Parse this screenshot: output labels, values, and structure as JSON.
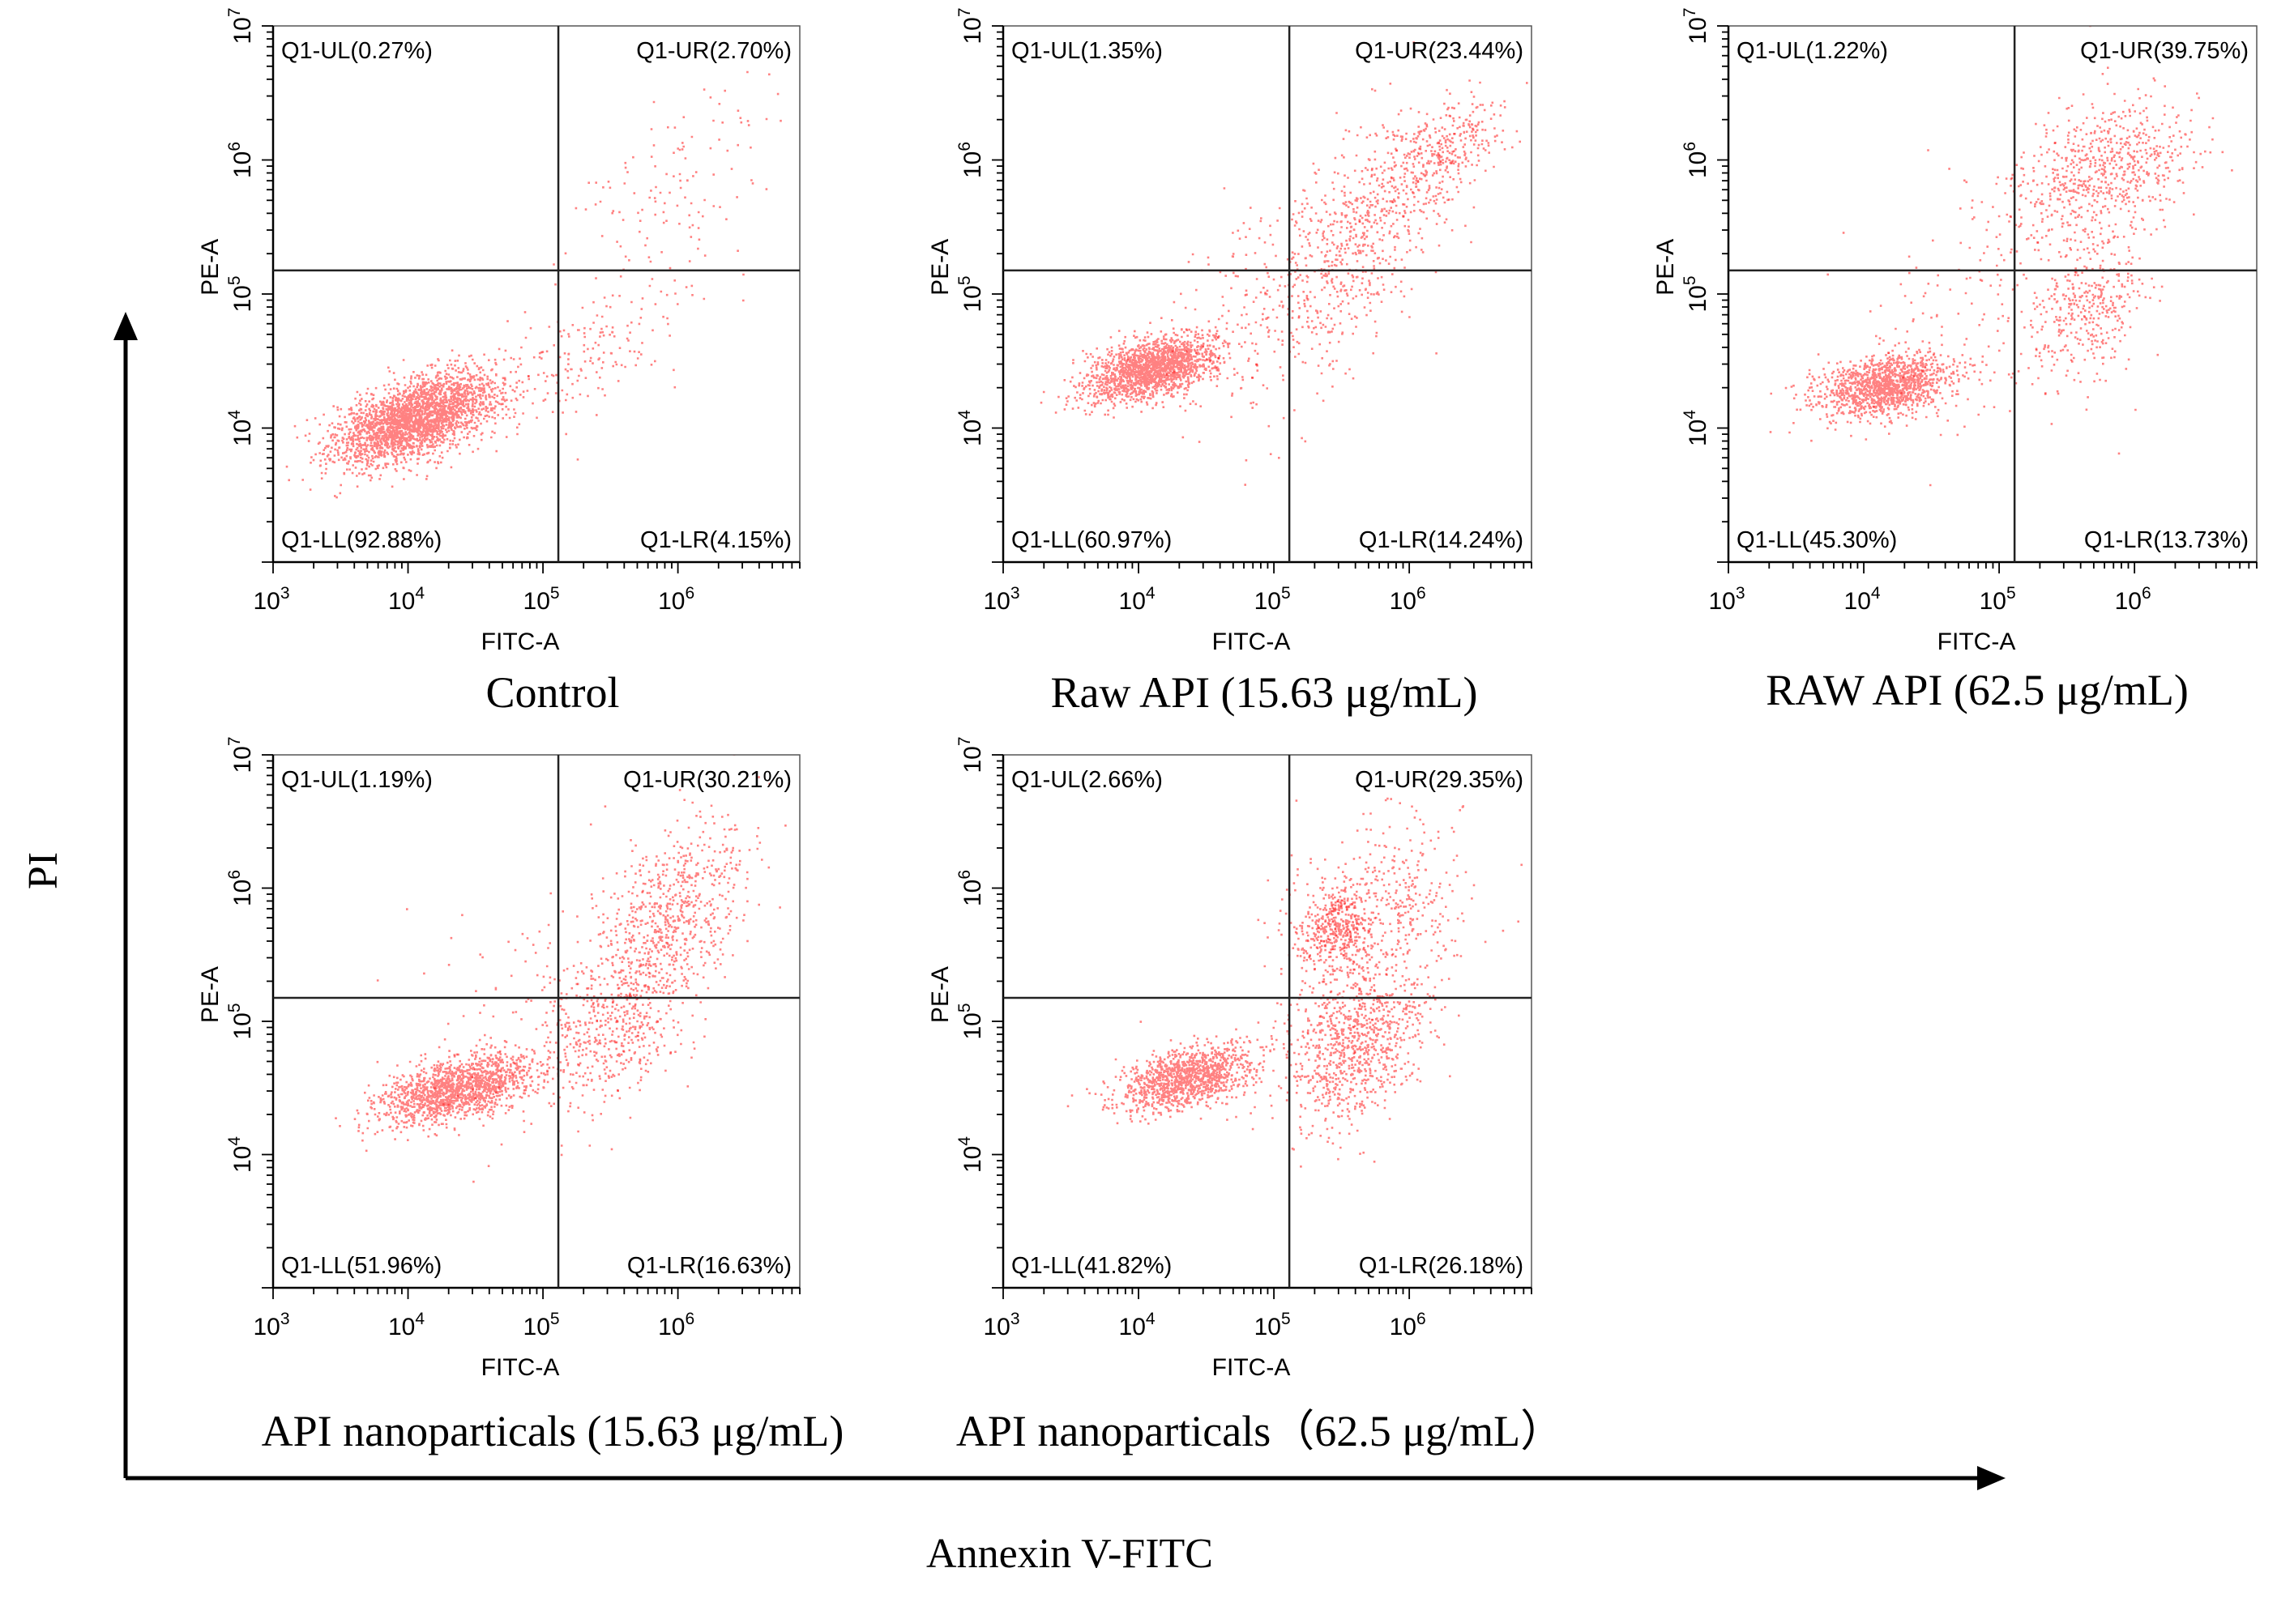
{
  "figure": {
    "global_y_label": "PI",
    "global_x_label": "Annexin V-FITC"
  },
  "colors": {
    "dots": "#ff1a1a",
    "axis": "#000000",
    "background": "#ffffff"
  },
  "chart_data": [
    {
      "type": "scatter",
      "title": "Control",
      "xlabel": "FITC-A",
      "ylabel": "PE-A",
      "x_scale": "log",
      "y_scale": "log",
      "xlim": [
        1000,
        8000000
      ],
      "ylim": [
        1000,
        10000000
      ],
      "x_ticks": [
        {
          "base": "10",
          "exp": "3"
        },
        {
          "base": "10",
          "exp": "4"
        },
        {
          "base": "10",
          "exp": "5"
        },
        {
          "base": "10",
          "exp": "6"
        }
      ],
      "y_ticks": [
        {
          "base": "10",
          "exp": "4"
        },
        {
          "base": "10",
          "exp": "5"
        },
        {
          "base": "10",
          "exp": "6"
        },
        {
          "base": "10",
          "exp": "7"
        }
      ],
      "gate": {
        "x": 130000,
        "y": 150000
      },
      "quadrants": {
        "UL": "Q1-UL(0.27%)",
        "UR": "Q1-UR(2.70%)",
        "LL": "Q1-LL(92.88%)",
        "LR": "Q1-LR(4.15%)"
      },
      "quadrant_percent": {
        "UL": 0.27,
        "UR": 2.7,
        "LL": 92.88,
        "LR": 4.15
      },
      "clusters": [
        {
          "count": 2600,
          "x_log": 4.05,
          "y_log": 4.08,
          "sx": 0.3,
          "sy": 0.17,
          "rho": 0.55
        },
        {
          "count": 200,
          "x_log": 5.4,
          "y_log": 4.6,
          "sx": 0.4,
          "sy": 0.35,
          "rho": 0.7
        },
        {
          "count": 110,
          "x_log": 5.95,
          "y_log": 5.9,
          "sx": 0.35,
          "sy": 0.3,
          "rho": 0.5
        }
      ]
    },
    {
      "type": "scatter",
      "title": "Raw API (15.63 μg/mL)",
      "xlabel": "FITC-A",
      "ylabel": "PE-A",
      "x_scale": "log",
      "y_scale": "log",
      "xlim": [
        1000,
        8000000
      ],
      "ylim": [
        1000,
        10000000
      ],
      "x_ticks": [
        {
          "base": "10",
          "exp": "3"
        },
        {
          "base": "10",
          "exp": "4"
        },
        {
          "base": "10",
          "exp": "5"
        },
        {
          "base": "10",
          "exp": "6"
        }
      ],
      "y_ticks": [
        {
          "base": "10",
          "exp": "4"
        },
        {
          "base": "10",
          "exp": "5"
        },
        {
          "base": "10",
          "exp": "6"
        },
        {
          "base": "10",
          "exp": "7"
        }
      ],
      "gate": {
        "x": 130000,
        "y": 150000
      },
      "quadrants": {
        "UL": "Q1-UL(1.35%)",
        "UR": "Q1-UR(23.44%)",
        "LL": "Q1-LL(60.97%)",
        "LR": "Q1-LR(14.24%)"
      },
      "quadrant_percent": {
        "UL": 1.35,
        "UR": 23.44,
        "LL": 60.97,
        "LR": 14.24
      },
      "clusters": [
        {
          "count": 1700,
          "x_log": 4.1,
          "y_log": 4.45,
          "sx": 0.24,
          "sy": 0.12,
          "rho": 0.45
        },
        {
          "count": 650,
          "x_log": 5.55,
          "y_log": 5.4,
          "sx": 0.35,
          "sy": 0.45,
          "rho": 0.6
        },
        {
          "count": 350,
          "x_log": 6.2,
          "y_log": 6.05,
          "sx": 0.25,
          "sy": 0.22,
          "rho": 0.5
        },
        {
          "count": 160,
          "x_log": 4.9,
          "y_log": 4.8,
          "sx": 0.4,
          "sy": 0.5,
          "rho": 0.3
        }
      ]
    },
    {
      "type": "scatter",
      "title": "RAW API (62.5 μg/mL)",
      "xlabel": "FITC-A",
      "ylabel": "PE-A",
      "x_scale": "log",
      "y_scale": "log",
      "xlim": [
        1000,
        8000000
      ],
      "ylim": [
        1000,
        10000000
      ],
      "x_ticks": [
        {
          "base": "10",
          "exp": "3"
        },
        {
          "base": "10",
          "exp": "4"
        },
        {
          "base": "10",
          "exp": "5"
        },
        {
          "base": "10",
          "exp": "6"
        }
      ],
      "y_ticks": [
        {
          "base": "10",
          "exp": "4"
        },
        {
          "base": "10",
          "exp": "5"
        },
        {
          "base": "10",
          "exp": "6"
        },
        {
          "base": "10",
          "exp": "7"
        }
      ],
      "gate": {
        "x": 130000,
        "y": 150000
      },
      "quadrants": {
        "UL": "Q1-UL(1.22%)",
        "UR": "Q1-UR(39.75%)",
        "LL": "Q1-LL(45.30%)",
        "LR": "Q1-LR(13.73%)"
      },
      "quadrant_percent": {
        "UL": 1.22,
        "UR": 39.75,
        "LL": 45.3,
        "LR": 13.73
      },
      "clusters": [
        {
          "count": 1300,
          "x_log": 4.15,
          "y_log": 4.32,
          "sx": 0.25,
          "sy": 0.12,
          "rho": 0.3
        },
        {
          "count": 700,
          "x_log": 5.75,
          "y_log": 5.9,
          "sx": 0.35,
          "sy": 0.28,
          "rho": 0.4
        },
        {
          "count": 350,
          "x_log": 5.65,
          "y_log": 4.9,
          "sx": 0.2,
          "sy": 0.25,
          "rho": 0.3
        },
        {
          "count": 150,
          "x_log": 4.9,
          "y_log": 4.9,
          "sx": 0.45,
          "sy": 0.5,
          "rho": 0.2
        }
      ]
    },
    {
      "type": "scatter",
      "title": "API nanoparticals (15.63 μg/mL)",
      "xlabel": "FITC-A",
      "ylabel": "PE-A",
      "x_scale": "log",
      "y_scale": "log",
      "xlim": [
        1000,
        8000000
      ],
      "ylim": [
        1000,
        10000000
      ],
      "x_ticks": [
        {
          "base": "10",
          "exp": "3"
        },
        {
          "base": "10",
          "exp": "4"
        },
        {
          "base": "10",
          "exp": "5"
        },
        {
          "base": "10",
          "exp": "6"
        }
      ],
      "y_ticks": [
        {
          "base": "10",
          "exp": "4"
        },
        {
          "base": "10",
          "exp": "5"
        },
        {
          "base": "10",
          "exp": "6"
        },
        {
          "base": "10",
          "exp": "7"
        }
      ],
      "gate": {
        "x": 130000,
        "y": 150000
      },
      "quadrants": {
        "UL": "Q1-UL(1.19%)",
        "UR": "Q1-UR(30.21%)",
        "LL": "Q1-LL(51.96%)",
        "LR": "Q1-LR(16.63%)"
      },
      "quadrant_percent": {
        "UL": 1.19,
        "UR": 30.21,
        "LL": 51.96,
        "LR": 16.63
      },
      "clusters": [
        {
          "count": 1500,
          "x_log": 4.35,
          "y_log": 4.5,
          "sx": 0.28,
          "sy": 0.13,
          "rho": 0.5
        },
        {
          "count": 800,
          "x_log": 5.9,
          "y_log": 5.7,
          "sx": 0.3,
          "sy": 0.4,
          "rho": 0.55
        },
        {
          "count": 350,
          "x_log": 5.45,
          "y_log": 4.9,
          "sx": 0.25,
          "sy": 0.25,
          "rho": 0.3
        },
        {
          "count": 150,
          "x_log": 5.0,
          "y_log": 5.0,
          "sx": 0.5,
          "sy": 0.55,
          "rho": 0.2
        }
      ]
    },
    {
      "type": "scatter",
      "title": "API nanoparticals（62.5 μg/mL）",
      "xlabel": "FITC-A",
      "ylabel": "PE-A",
      "x_scale": "log",
      "y_scale": "log",
      "xlim": [
        1000,
        8000000
      ],
      "ylim": [
        1000,
        10000000
      ],
      "x_ticks": [
        {
          "base": "10",
          "exp": "3"
        },
        {
          "base": "10",
          "exp": "4"
        },
        {
          "base": "10",
          "exp": "5"
        },
        {
          "base": "10",
          "exp": "6"
        }
      ],
      "y_ticks": [
        {
          "base": "10",
          "exp": "4"
        },
        {
          "base": "10",
          "exp": "5"
        },
        {
          "base": "10",
          "exp": "6"
        },
        {
          "base": "10",
          "exp": "7"
        }
      ],
      "gate": {
        "x": 130000,
        "y": 150000
      },
      "quadrants": {
        "UL": "Q1-UL(2.66%)",
        "UR": "Q1-UR(29.35%)",
        "LL": "Q1-LL(41.82%)",
        "LR": "Q1-LR(26.18%)"
      },
      "quadrant_percent": {
        "UL": 2.66,
        "UR": 29.35,
        "LL": 41.82,
        "LR": 26.18
      },
      "clusters": [
        {
          "count": 1200,
          "x_log": 4.35,
          "y_log": 4.58,
          "sx": 0.25,
          "sy": 0.12,
          "rho": 0.4
        },
        {
          "count": 900,
          "x_log": 5.6,
          "y_log": 4.85,
          "sx": 0.25,
          "sy": 0.3,
          "rho": 0.3
        },
        {
          "count": 550,
          "x_log": 5.75,
          "y_log": 5.8,
          "sx": 0.35,
          "sy": 0.35,
          "rho": 0.3
        },
        {
          "count": 300,
          "x_log": 5.45,
          "y_log": 5.7,
          "sx": 0.12,
          "sy": 0.12,
          "rho": 0.0
        }
      ]
    }
  ]
}
